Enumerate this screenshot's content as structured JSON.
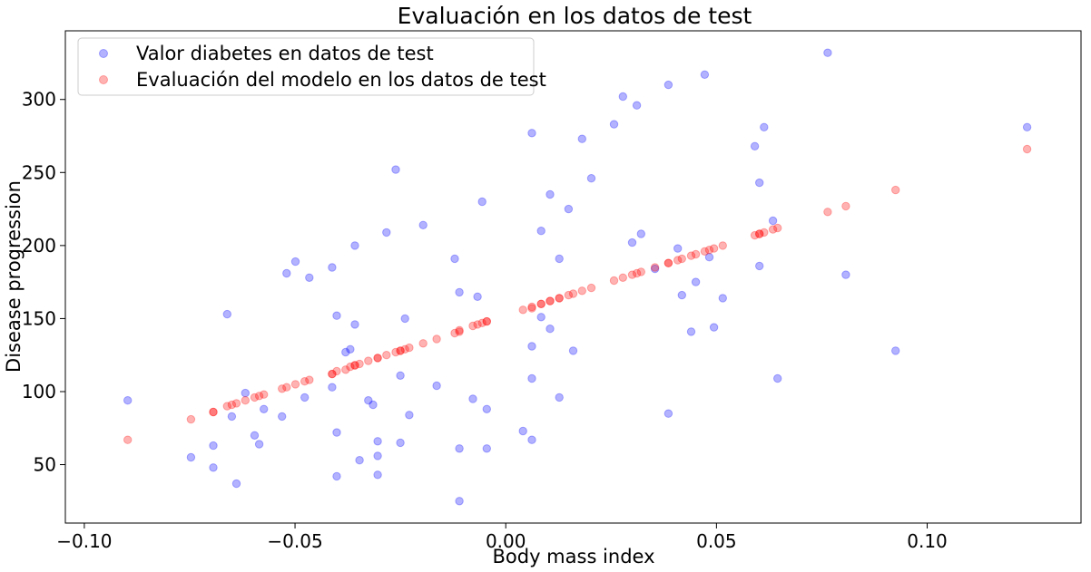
{
  "chart_data": {
    "type": "scatter",
    "title": "Evaluación en los datos de test",
    "xlabel": "Body mass index",
    "ylabel": "Disease progression",
    "xlim": [
      -0.1045,
      0.1365
    ],
    "ylim": [
      10,
      347
    ],
    "x_ticks": [
      {
        "value": -0.1,
        "label": "−0.10"
      },
      {
        "value": -0.05,
        "label": "−0.05"
      },
      {
        "value": 0.0,
        "label": "0.00"
      },
      {
        "value": 0.05,
        "label": "0.05"
      },
      {
        "value": 0.1,
        "label": "0.10"
      }
    ],
    "y_ticks": [
      {
        "value": 50,
        "label": "50"
      },
      {
        "value": 100,
        "label": "100"
      },
      {
        "value": 150,
        "label": "150"
      },
      {
        "value": 200,
        "label": "200"
      },
      {
        "value": 250,
        "label": "250"
      },
      {
        "value": 300,
        "label": "300"
      }
    ],
    "grid": false,
    "legend_position": "top-left",
    "series": [
      {
        "name": "Valor diabetes en datos de test",
        "color": "#0000ff",
        "points": [
          [
            -0.0897,
            94
          ],
          [
            -0.0747,
            55
          ],
          [
            -0.0694,
            63
          ],
          [
            -0.0694,
            48
          ],
          [
            -0.0661,
            153
          ],
          [
            -0.065,
            83
          ],
          [
            -0.0639,
            37
          ],
          [
            -0.0618,
            99
          ],
          [
            -0.0596,
            70
          ],
          [
            -0.0585,
            64
          ],
          [
            -0.0574,
            88
          ],
          [
            -0.0531,
            83
          ],
          [
            -0.052,
            181
          ],
          [
            -0.0499,
            189
          ],
          [
            -0.0477,
            96
          ],
          [
            -0.0466,
            178
          ],
          [
            -0.0412,
            185
          ],
          [
            -0.0412,
            103
          ],
          [
            -0.0401,
            152
          ],
          [
            -0.0401,
            72
          ],
          [
            -0.0401,
            42
          ],
          [
            -0.038,
            127
          ],
          [
            -0.0369,
            129
          ],
          [
            -0.0358,
            200
          ],
          [
            -0.0358,
            146
          ],
          [
            -0.0347,
            53
          ],
          [
            -0.0326,
            94
          ],
          [
            -0.0315,
            91
          ],
          [
            -0.0304,
            66
          ],
          [
            -0.0304,
            56
          ],
          [
            -0.0304,
            43
          ],
          [
            -0.0283,
            209
          ],
          [
            -0.0261,
            252
          ],
          [
            -0.025,
            111
          ],
          [
            -0.025,
            65
          ],
          [
            -0.0239,
            150
          ],
          [
            -0.0229,
            84
          ],
          [
            -0.0196,
            214
          ],
          [
            -0.0164,
            104
          ],
          [
            -0.0121,
            191
          ],
          [
            -0.011,
            168
          ],
          [
            -0.011,
            61
          ],
          [
            -0.011,
            25
          ],
          [
            -0.0078,
            95
          ],
          [
            -0.0067,
            165
          ],
          [
            -0.0056,
            230
          ],
          [
            -0.0045,
            88
          ],
          [
            -0.0045,
            61
          ],
          [
            0.0041,
            73
          ],
          [
            0.0062,
            277
          ],
          [
            0.0062,
            131
          ],
          [
            0.0062,
            109
          ],
          [
            0.0062,
            67
          ],
          [
            0.0084,
            151
          ],
          [
            0.0084,
            210
          ],
          [
            0.0105,
            143
          ],
          [
            0.0105,
            235
          ],
          [
            0.0127,
            191
          ],
          [
            0.0127,
            96
          ],
          [
            0.0149,
            225
          ],
          [
            0.016,
            128
          ],
          [
            0.0181,
            273
          ],
          [
            0.0203,
            246
          ],
          [
            0.0257,
            283
          ],
          [
            0.0278,
            302
          ],
          [
            0.03,
            202
          ],
          [
            0.0311,
            296
          ],
          [
            0.0321,
            208
          ],
          [
            0.0354,
            184
          ],
          [
            0.0386,
            310
          ],
          [
            0.0386,
            85
          ],
          [
            0.0408,
            198
          ],
          [
            0.0418,
            166
          ],
          [
            0.044,
            141
          ],
          [
            0.0451,
            175
          ],
          [
            0.0472,
            317
          ],
          [
            0.0483,
            192
          ],
          [
            0.0494,
            144
          ],
          [
            0.0515,
            164
          ],
          [
            0.0591,
            268
          ],
          [
            0.0602,
            243
          ],
          [
            0.0602,
            186
          ],
          [
            0.0613,
            281
          ],
          [
            0.0634,
            217
          ],
          [
            0.0645,
            109
          ],
          [
            0.0764,
            332
          ],
          [
            0.0807,
            180
          ],
          [
            0.0925,
            128
          ],
          [
            0.1237,
            281
          ]
        ]
      },
      {
        "name": "Evaluación del modelo en los datos de test",
        "color": "#ff0000",
        "points": [
          [
            -0.0897,
            67
          ],
          [
            -0.0747,
            81
          ],
          [
            -0.0694,
            86
          ],
          [
            -0.0694,
            86
          ],
          [
            -0.0661,
            90
          ],
          [
            -0.065,
            91
          ],
          [
            -0.0639,
            92
          ],
          [
            -0.0618,
            94
          ],
          [
            -0.0596,
            96
          ],
          [
            -0.0585,
            97
          ],
          [
            -0.0574,
            98
          ],
          [
            -0.0531,
            102
          ],
          [
            -0.052,
            103
          ],
          [
            -0.0499,
            105
          ],
          [
            -0.0477,
            107
          ],
          [
            -0.0466,
            108
          ],
          [
            -0.0412,
            112
          ],
          [
            -0.0412,
            112
          ],
          [
            -0.0401,
            114
          ],
          [
            -0.038,
            115
          ],
          [
            -0.0369,
            117
          ],
          [
            -0.0358,
            118
          ],
          [
            -0.0358,
            118
          ],
          [
            -0.0347,
            119
          ],
          [
            -0.0326,
            121
          ],
          [
            -0.0304,
            123
          ],
          [
            -0.0304,
            123
          ],
          [
            -0.0283,
            125
          ],
          [
            -0.0261,
            127
          ],
          [
            -0.025,
            128
          ],
          [
            -0.025,
            128
          ],
          [
            -0.0239,
            129
          ],
          [
            -0.0229,
            130
          ],
          [
            -0.0196,
            133
          ],
          [
            -0.0164,
            136
          ],
          [
            -0.0121,
            140
          ],
          [
            -0.011,
            141
          ],
          [
            -0.011,
            142
          ],
          [
            -0.0078,
            145
          ],
          [
            -0.0067,
            146
          ],
          [
            -0.0056,
            147
          ],
          [
            -0.0045,
            148
          ],
          [
            -0.0045,
            148
          ],
          [
            0.0041,
            156
          ],
          [
            0.0062,
            157
          ],
          [
            0.0062,
            158
          ],
          [
            0.0084,
            160
          ],
          [
            0.0084,
            160
          ],
          [
            0.0105,
            162
          ],
          [
            0.0105,
            162
          ],
          [
            0.0127,
            164
          ],
          [
            0.0127,
            164
          ],
          [
            0.0149,
            166
          ],
          [
            0.016,
            167
          ],
          [
            0.0181,
            169
          ],
          [
            0.0203,
            171
          ],
          [
            0.0257,
            176
          ],
          [
            0.0278,
            178
          ],
          [
            0.03,
            180
          ],
          [
            0.0311,
            181
          ],
          [
            0.0321,
            182
          ],
          [
            0.0354,
            185
          ],
          [
            0.0386,
            188
          ],
          [
            0.0386,
            188
          ],
          [
            0.0408,
            190
          ],
          [
            0.0418,
            191
          ],
          [
            0.044,
            193
          ],
          [
            0.0451,
            194
          ],
          [
            0.0472,
            196
          ],
          [
            0.0483,
            197
          ],
          [
            0.0494,
            198
          ],
          [
            0.0515,
            200
          ],
          [
            0.0591,
            207
          ],
          [
            0.0602,
            208
          ],
          [
            0.0602,
            208
          ],
          [
            0.0613,
            209
          ],
          [
            0.0634,
            211
          ],
          [
            0.0645,
            212
          ],
          [
            0.0764,
            223
          ],
          [
            0.0807,
            227
          ],
          [
            0.0925,
            238
          ],
          [
            0.1237,
            266
          ]
        ]
      }
    ]
  }
}
